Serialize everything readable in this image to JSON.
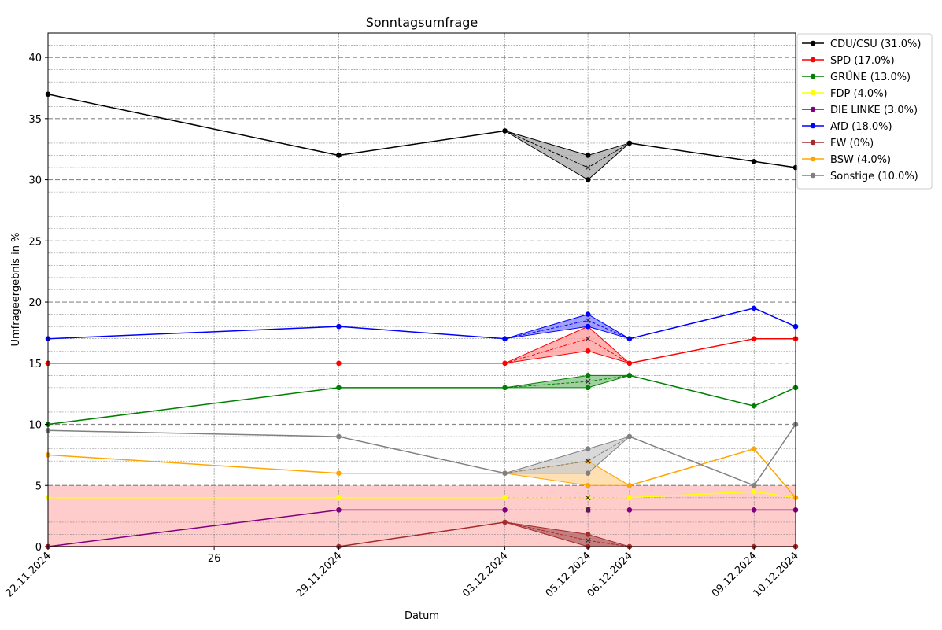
{
  "chart_data": {
    "type": "line",
    "title": "Sonntagsumfrage",
    "xlabel": "Datum",
    "ylabel": "Umfrageergebnis in %",
    "ylim": [
      0,
      42
    ],
    "y_ticks": [
      0,
      5,
      10,
      15,
      20,
      25,
      30,
      35,
      40
    ],
    "x_dates": [
      "2024-11-22",
      "2024-11-29",
      "2024-12-03",
      "2024-12-05",
      "2024-12-06",
      "2024-12-09",
      "2024-12-10"
    ],
    "x_tick_labels": [
      {
        "date": "2024-11-22",
        "label": "22.11.2024"
      },
      {
        "date": "2024-11-26",
        "label": "26"
      },
      {
        "date": "2024-11-29",
        "label": "29.11.2024"
      },
      {
        "date": "2024-12-03",
        "label": "03.12.2024"
      },
      {
        "date": "2024-12-05",
        "label": "05.12.2024"
      },
      {
        "date": "2024-12-06",
        "label": "06.12.2024"
      },
      {
        "date": "2024-12-09",
        "label": "09.12.2024"
      },
      {
        "date": "2024-12-10",
        "label": "10.12.2024"
      }
    ],
    "threshold_band": {
      "from": 0,
      "to": 5,
      "color": "#ffcccc"
    },
    "grid": true,
    "legend_position": "right-outside-top",
    "range_date": "2024-12-05",
    "series": [
      {
        "name": "CDU/CSU",
        "legend": "CDU/CSU (31.0%)",
        "color": "#000000",
        "fill": "#a6a6a6",
        "values": [
          37,
          32,
          34,
          31,
          33,
          31.5,
          31
        ],
        "range": [
          30,
          32
        ]
      },
      {
        "name": "SPD",
        "legend": "SPD (17.0%)",
        "color": "#ff0000",
        "fill": "#ff9999",
        "values": [
          15,
          15,
          15,
          17,
          15,
          17,
          17
        ],
        "range": [
          16,
          18
        ]
      },
      {
        "name": "GRÜNE",
        "legend": "GRÜNE (13.0%)",
        "color": "#008000",
        "fill": "#80c080",
        "values": [
          10,
          13,
          13,
          13.5,
          14,
          11.5,
          13
        ],
        "range": [
          13,
          14
        ]
      },
      {
        "name": "FDP",
        "legend": "FDP (4.0%)",
        "color": "#ffff00",
        "fill": "#ffff99",
        "values": [
          4,
          4,
          4,
          4,
          4,
          4.5,
          4
        ],
        "range": [
          4,
          4
        ]
      },
      {
        "name": "DIE LINKE",
        "legend": "DIE LINKE (3.0%)",
        "color": "#800080",
        "fill": "#c080c0",
        "values": [
          0,
          3,
          3,
          3,
          3,
          3,
          3
        ],
        "range": [
          3,
          3
        ]
      },
      {
        "name": "AfD",
        "legend": "AfD (18.0%)",
        "color": "#0000ff",
        "fill": "#8080ff",
        "values": [
          17,
          18,
          17,
          18.5,
          17,
          19.5,
          18
        ],
        "range": [
          18,
          19
        ]
      },
      {
        "name": "FW",
        "legend": "FW (0%)",
        "color": "#a52a2a",
        "fill": "#b46464",
        "values": [
          0,
          0,
          2,
          0.5,
          0,
          0,
          0
        ],
        "range": [
          0,
          1
        ]
      },
      {
        "name": "BSW",
        "legend": "BSW (4.0%)",
        "color": "#ffa500",
        "fill": "#ffd699",
        "values": [
          7.5,
          6,
          6,
          7,
          5,
          8,
          4
        ],
        "range": [
          5,
          7
        ]
      },
      {
        "name": "Sonstige",
        "legend": "Sonstige (10.0%)",
        "color": "#808080",
        "fill": "#cccccc",
        "values": [
          9.5,
          9,
          6,
          7,
          9,
          5,
          10
        ],
        "range": [
          6,
          8
        ]
      }
    ]
  }
}
